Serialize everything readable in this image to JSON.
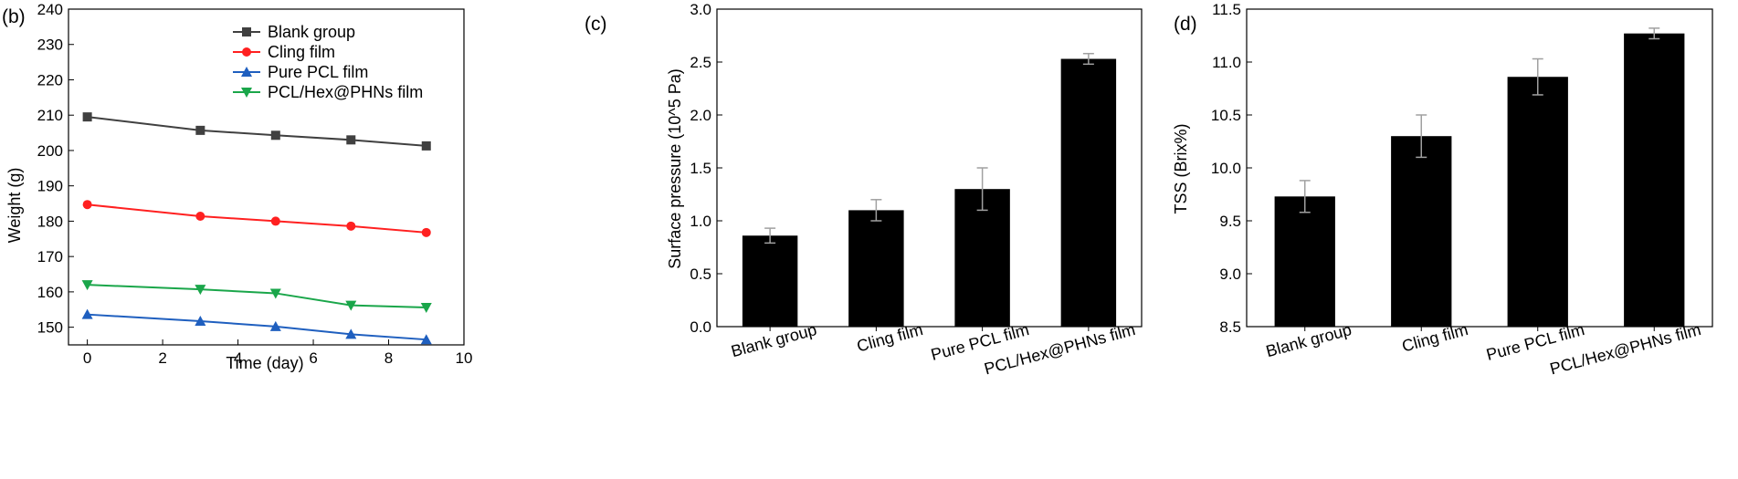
{
  "chart_data": [
    {
      "type": "line",
      "panel_label": "(b)",
      "xlabel": "Time (day)",
      "ylabel": "Weight (g)",
      "xlim": [
        -0.5,
        10
      ],
      "ylim": [
        145,
        240
      ],
      "xticks": [
        0,
        2,
        4,
        6,
        8,
        10
      ],
      "yticks": [
        150,
        160,
        170,
        180,
        190,
        200,
        210,
        220,
        230,
        240
      ],
      "grid": false,
      "legend_position": "top-right",
      "x": [
        0,
        3,
        5,
        7,
        9
      ],
      "series": [
        {
          "name": "Blank group",
          "color": "#404040",
          "marker": "square",
          "values": [
            209.5,
            205.7,
            204.3,
            203.0,
            201.3
          ]
        },
        {
          "name": "Cling film",
          "color": "#ff2020",
          "marker": "circle",
          "values": [
            184.7,
            181.4,
            180.0,
            178.6,
            176.8
          ]
        },
        {
          "name": "Pure PCL film",
          "color": "#1f5fbf",
          "marker": "triangle-up",
          "values": [
            153.6,
            151.7,
            150.2,
            148.0,
            146.5
          ]
        },
        {
          "name": "PCL/Hex@PHNs film",
          "color": "#1aa64a",
          "marker": "triangle-down",
          "values": [
            162.0,
            160.7,
            159.6,
            156.2,
            155.6
          ]
        }
      ]
    },
    {
      "type": "bar",
      "panel_label": "(c)",
      "xlabel": "",
      "ylabel": "Surface pressure (10^5 Pa)",
      "ylim": [
        0,
        3.0
      ],
      "yticks": [
        "0.0",
        "0.5",
        "1.0",
        "1.5",
        "2.0",
        "2.5",
        "3.0"
      ],
      "grid": false,
      "categories": [
        "Blank group",
        "Cling film",
        "Pure PCL film",
        "PCL/Hex@PHNs film"
      ],
      "values": [
        0.86,
        1.1,
        1.3,
        2.53
      ],
      "errors": [
        0.07,
        0.1,
        0.2,
        0.05
      ],
      "bar_color": "#000000",
      "error_color": "#a0a0a0"
    },
    {
      "type": "bar",
      "panel_label": "(d)",
      "xlabel": "",
      "ylabel": "TSS (Brix%)",
      "ylim": [
        8.5,
        11.5
      ],
      "yticks": [
        "8.5",
        "9.0",
        "9.5",
        "10.0",
        "10.5",
        "11.0",
        "11.5"
      ],
      "grid": false,
      "categories": [
        "Blank group",
        "Cling film",
        "Pure PCL film",
        "PCL/Hex@PHNs film"
      ],
      "values": [
        9.73,
        10.3,
        10.86,
        11.27
      ],
      "errors": [
        0.15,
        0.2,
        0.17,
        0.05
      ],
      "bar_color": "#000000",
      "error_color": "#a0a0a0"
    }
  ]
}
